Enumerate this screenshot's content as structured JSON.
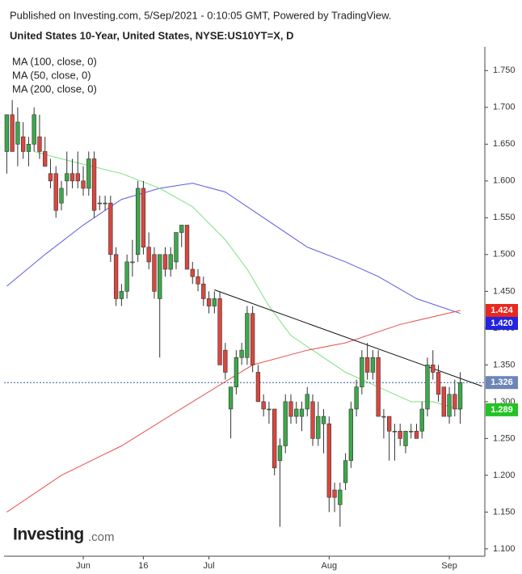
{
  "chart_data": {
    "type": "candlestick",
    "header": "Published on Investing.com, 5/Sep/2021 - 0:10:05 GMT, Powered by TradingView.",
    "title": "United States 10-Year, United States, NYSE:US10YT=X, D",
    "logo": "Investing",
    "logo_suffix": ".com",
    "up_color": "#3ca84b",
    "down_color": "#d9473f",
    "open": [
      1.64,
      1.69,
      1.65,
      1.66,
      1.64,
      1.65,
      1.66,
      1.64,
      1.61,
      1.61,
      1.57,
      1.6,
      1.61,
      1.61,
      1.6,
      1.59,
      1.63,
      1.57,
      1.57,
      1.57,
      1.5,
      1.44,
      1.45,
      1.49,
      1.5,
      1.59,
      1.51,
      1.5,
      1.44,
      1.5,
      1.48,
      1.49,
      1.53,
      1.54,
      1.48,
      1.47,
      1.46,
      1.44,
      1.43,
      1.44,
      1.37,
      1.29,
      1.32,
      1.36,
      1.36,
      1.42,
      1.34,
      1.3,
      1.29,
      1.29,
      1.22,
      1.24,
      1.3,
      1.28,
      1.28,
      1.29,
      1.3,
      1.25,
      1.27,
      1.27,
      1.18,
      1.16,
      1.19,
      1.22,
      1.29,
      1.32,
      1.36,
      1.34,
      1.36,
      1.28,
      1.28,
      1.26,
      1.26,
      1.24,
      1.26,
      1.26,
      1.26,
      1.29,
      1.35,
      1.34,
      1.32,
      1.28,
      1.31,
      1.29
    ],
    "high": [
      1.69,
      1.71,
      1.7,
      1.68,
      1.66,
      1.7,
      1.69,
      1.66,
      1.63,
      1.62,
      1.6,
      1.64,
      1.63,
      1.64,
      1.62,
      1.64,
      1.64,
      1.58,
      1.58,
      1.58,
      1.51,
      1.46,
      1.5,
      1.52,
      1.6,
      1.6,
      1.53,
      1.51,
      1.5,
      1.51,
      1.51,
      1.53,
      1.54,
      1.54,
      1.49,
      1.48,
      1.47,
      1.45,
      1.45,
      1.45,
      1.38,
      1.32,
      1.37,
      1.38,
      1.43,
      1.43,
      1.35,
      1.31,
      1.3,
      1.29,
      1.25,
      1.31,
      1.31,
      1.3,
      1.3,
      1.32,
      1.31,
      1.3,
      1.29,
      1.28,
      1.19,
      1.19,
      1.23,
      1.3,
      1.33,
      1.37,
      1.38,
      1.37,
      1.37,
      1.29,
      1.28,
      1.27,
      1.27,
      1.26,
      1.27,
      1.27,
      1.3,
      1.36,
      1.37,
      1.35,
      1.32,
      1.32,
      1.33,
      1.34
    ],
    "low": [
      1.61,
      1.64,
      1.62,
      1.63,
      1.62,
      1.64,
      1.63,
      1.62,
      1.59,
      1.55,
      1.56,
      1.58,
      1.59,
      1.59,
      1.58,
      1.58,
      1.55,
      1.56,
      1.56,
      1.49,
      1.43,
      1.43,
      1.44,
      1.47,
      1.49,
      1.5,
      1.48,
      1.44,
      1.36,
      1.47,
      1.47,
      1.48,
      1.51,
      1.48,
      1.46,
      1.45,
      1.43,
      1.42,
      1.42,
      1.35,
      1.33,
      1.25,
      1.31,
      1.35,
      1.35,
      1.34,
      1.3,
      1.28,
      1.27,
      1.2,
      1.13,
      1.23,
      1.27,
      1.27,
      1.26,
      1.28,
      1.24,
      1.24,
      1.23,
      1.15,
      1.15,
      1.13,
      1.18,
      1.21,
      1.28,
      1.31,
      1.33,
      1.33,
      1.28,
      1.25,
      1.22,
      1.22,
      1.24,
      1.23,
      1.25,
      1.25,
      1.25,
      1.28,
      1.33,
      1.3,
      1.28,
      1.27,
      1.28,
      1.27
    ],
    "close": [
      1.69,
      1.64,
      1.68,
      1.64,
      1.65,
      1.69,
      1.64,
      1.62,
      1.6,
      1.56,
      1.59,
      1.61,
      1.6,
      1.6,
      1.59,
      1.63,
      1.56,
      1.57,
      1.57,
      1.5,
      1.44,
      1.45,
      1.49,
      1.49,
      1.59,
      1.51,
      1.49,
      1.45,
      1.5,
      1.48,
      1.5,
      1.53,
      1.54,
      1.48,
      1.47,
      1.46,
      1.44,
      1.43,
      1.44,
      1.35,
      1.34,
      1.32,
      1.36,
      1.37,
      1.42,
      1.35,
      1.3,
      1.29,
      1.29,
      1.21,
      1.24,
      1.3,
      1.28,
      1.29,
      1.29,
      1.31,
      1.25,
      1.28,
      1.28,
      1.17,
      1.17,
      1.18,
      1.22,
      1.29,
      1.32,
      1.36,
      1.34,
      1.36,
      1.28,
      1.28,
      1.26,
      1.26,
      1.25,
      1.26,
      1.26,
      1.25,
      1.29,
      1.35,
      1.34,
      1.31,
      1.28,
      1.31,
      1.29,
      1.326
    ],
    "lines": [
      {
        "name": "MA (100, close, 0)",
        "color": "#5b5be0",
        "x": [
          0,
          7,
          14,
          21,
          28,
          34,
          40,
          47,
          55,
          62,
          68,
          75,
          83
        ],
        "values": [
          1.457,
          1.5,
          1.54,
          1.575,
          1.59,
          1.597,
          1.585,
          1.55,
          1.51,
          1.49,
          1.47,
          1.44,
          1.42
        ]
      },
      {
        "name": "MA (50, close, 0)",
        "color": "#7ee07e",
        "x": [
          5,
          10,
          21,
          28,
          34,
          40,
          44,
          48,
          52,
          56,
          62,
          68,
          74,
          78,
          83
        ],
        "values": [
          1.64,
          1.63,
          1.61,
          1.59,
          1.565,
          1.52,
          1.48,
          1.43,
          1.39,
          1.37,
          1.34,
          1.32,
          1.3,
          1.3,
          1.289
        ]
      },
      {
        "name": "MA (200, close, 0)",
        "color": "#e85050",
        "x": [
          0,
          10,
          21,
          34,
          45,
          55,
          62,
          72,
          83
        ],
        "values": [
          1.15,
          1.2,
          1.24,
          1.3,
          1.35,
          1.37,
          1.38,
          1.405,
          1.424
        ]
      }
    ],
    "trendline": {
      "x": [
        38,
        87
      ],
      "values": [
        1.452,
        1.321
      ]
    },
    "last_price": 1.326,
    "price_labels": [
      {
        "value": 1.424,
        "label": "1.424",
        "color": "#e8281e"
      },
      {
        "value": 1.42,
        "label": "1.420",
        "color": "#2323e0"
      },
      {
        "value": 1.326,
        "label": "1.326",
        "color": "#6d86b8"
      },
      {
        "value": 1.289,
        "label": "1.289",
        "color": "#22c322"
      }
    ],
    "xlim": [
      -0.5,
      87.5
    ],
    "xticks": [
      {
        "value": 14,
        "label": "Jun"
      },
      {
        "value": 25,
        "label": "16"
      },
      {
        "value": 37,
        "label": "Jul"
      },
      {
        "value": 59,
        "label": "Aug"
      },
      {
        "value": 81,
        "label": "Sep"
      }
    ],
    "ylim": [
      1.09,
      1.78
    ],
    "yticks": [
      {
        "value": 1.1,
        "label": "1.100"
      },
      {
        "value": 1.15,
        "label": "1.150"
      },
      {
        "value": 1.2,
        "label": "1.200"
      },
      {
        "value": 1.25,
        "label": "1.250"
      },
      {
        "value": 1.3,
        "label": "1.300"
      },
      {
        "value": 1.35,
        "label": "1.350"
      },
      {
        "value": 1.4,
        "label": "1.400"
      },
      {
        "value": 1.45,
        "label": "1.450"
      },
      {
        "value": 1.5,
        "label": "1.500"
      },
      {
        "value": 1.55,
        "label": "1.550"
      },
      {
        "value": 1.6,
        "label": "1.600"
      },
      {
        "value": 1.65,
        "label": "1.650"
      },
      {
        "value": 1.7,
        "label": "1.700"
      },
      {
        "value": 1.75,
        "label": "1.750"
      }
    ]
  }
}
